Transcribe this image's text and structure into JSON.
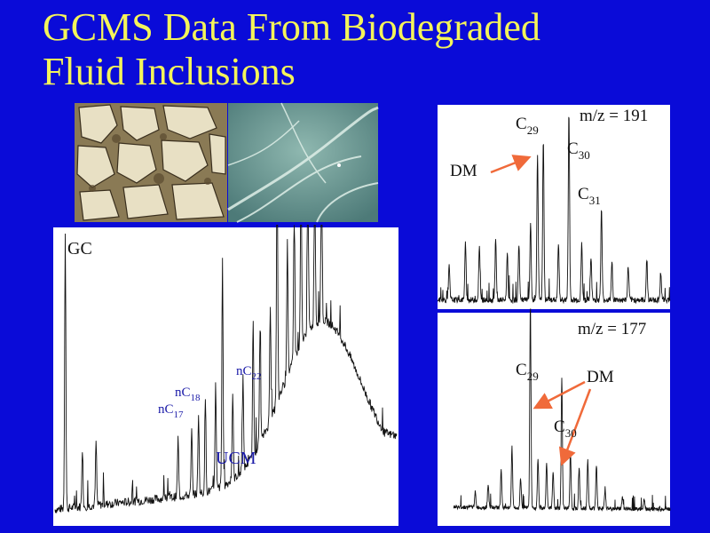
{
  "title": {
    "line1": "GCMS Data From Biodegraded",
    "line2": "Fluid Inclusions"
  },
  "photos": [
    {
      "name": "thin-section-photo"
    },
    {
      "name": "fluid-inclusion-photo"
    }
  ],
  "colors": {
    "background": "#0a0bd8",
    "title": "#f4f45a",
    "arrow": "#f06a3a",
    "trace": "#111111",
    "gc_labels": "#1a1aa8"
  },
  "chart_data": [
    {
      "type": "line",
      "panel": "gc",
      "label": "GC",
      "annotations": [
        {
          "id": "nC17",
          "text": "nC",
          "sub": "17"
        },
        {
          "id": "nC18",
          "text": "nC",
          "sub": "18"
        },
        {
          "id": "nC22",
          "text": "nC",
          "sub": "22"
        },
        {
          "id": "UCM",
          "text": "UCM",
          "sub": ""
        }
      ],
      "trace": {
        "baseline_start": 0.05,
        "hump_center": 0.78,
        "hump_height": 0.55,
        "end_level": 0.33
      },
      "peaks": [
        {
          "x": 0.03,
          "h": 0.95
        },
        {
          "x": 0.08,
          "h": 0.2
        },
        {
          "x": 0.12,
          "h": 0.22
        },
        {
          "x": 0.36,
          "h": 0.2
        },
        {
          "x": 0.4,
          "h": 0.22
        },
        {
          "x": 0.42,
          "h": 0.28
        },
        {
          "x": 0.44,
          "h": 0.32
        },
        {
          "x": 0.47,
          "h": 0.36
        },
        {
          "x": 0.49,
          "h": 0.78
        },
        {
          "x": 0.52,
          "h": 0.3
        },
        {
          "x": 0.55,
          "h": 0.32
        },
        {
          "x": 0.58,
          "h": 0.45
        },
        {
          "x": 0.6,
          "h": 0.38
        },
        {
          "x": 0.63,
          "h": 0.4
        },
        {
          "x": 0.65,
          "h": 0.98
        },
        {
          "x": 0.68,
          "h": 0.48
        },
        {
          "x": 0.7,
          "h": 0.55
        },
        {
          "x": 0.72,
          "h": 0.68
        },
        {
          "x": 0.74,
          "h": 0.62
        },
        {
          "x": 0.76,
          "h": 0.64
        },
        {
          "x": 0.78,
          "h": 0.66
        }
      ]
    },
    {
      "type": "line",
      "panel": "ms191",
      "label": "m/z = 191",
      "annotations": [
        {
          "id": "DM",
          "text": "DM",
          "sub": ""
        },
        {
          "id": "C29",
          "text": "C",
          "sub": "29"
        },
        {
          "id": "C30",
          "text": "C",
          "sub": "30"
        },
        {
          "id": "C31",
          "text": "C",
          "sub": "31"
        }
      ],
      "peaks": [
        {
          "x": 0.05,
          "h": 0.18
        },
        {
          "x": 0.12,
          "h": 0.3
        },
        {
          "x": 0.18,
          "h": 0.28
        },
        {
          "x": 0.25,
          "h": 0.32
        },
        {
          "x": 0.3,
          "h": 0.25
        },
        {
          "x": 0.35,
          "h": 0.3
        },
        {
          "x": 0.4,
          "h": 0.4
        },
        {
          "x": 0.43,
          "h": 0.78
        },
        {
          "x": 0.455,
          "h": 0.85
        },
        {
          "x": 0.52,
          "h": 0.3
        },
        {
          "x": 0.565,
          "h": 1.0
        },
        {
          "x": 0.62,
          "h": 0.3
        },
        {
          "x": 0.66,
          "h": 0.22
        },
        {
          "x": 0.705,
          "h": 0.48
        },
        {
          "x": 0.75,
          "h": 0.2
        },
        {
          "x": 0.82,
          "h": 0.18
        },
        {
          "x": 0.9,
          "h": 0.22
        },
        {
          "x": 0.96,
          "h": 0.15
        }
      ]
    },
    {
      "type": "line",
      "panel": "ms177",
      "label": "m/z = 177",
      "annotations": [
        {
          "id": "C29",
          "text": "C",
          "sub": "29"
        },
        {
          "id": "DM",
          "text": "DM",
          "sub": ""
        },
        {
          "id": "C30",
          "text": "C",
          "sub": "30"
        }
      ],
      "peaks": [
        {
          "x": 0.1,
          "h": 0.08
        },
        {
          "x": 0.16,
          "h": 0.12
        },
        {
          "x": 0.22,
          "h": 0.18
        },
        {
          "x": 0.27,
          "h": 0.3
        },
        {
          "x": 0.31,
          "h": 0.15
        },
        {
          "x": 0.355,
          "h": 1.0
        },
        {
          "x": 0.39,
          "h": 0.25
        },
        {
          "x": 0.43,
          "h": 0.22
        },
        {
          "x": 0.46,
          "h": 0.18
        },
        {
          "x": 0.5,
          "h": 0.65
        },
        {
          "x": 0.54,
          "h": 0.28
        },
        {
          "x": 0.58,
          "h": 0.2
        },
        {
          "x": 0.62,
          "h": 0.24
        },
        {
          "x": 0.66,
          "h": 0.22
        },
        {
          "x": 0.7,
          "h": 0.1
        },
        {
          "x": 0.78,
          "h": 0.06
        },
        {
          "x": 0.88,
          "h": 0.05
        }
      ]
    }
  ]
}
